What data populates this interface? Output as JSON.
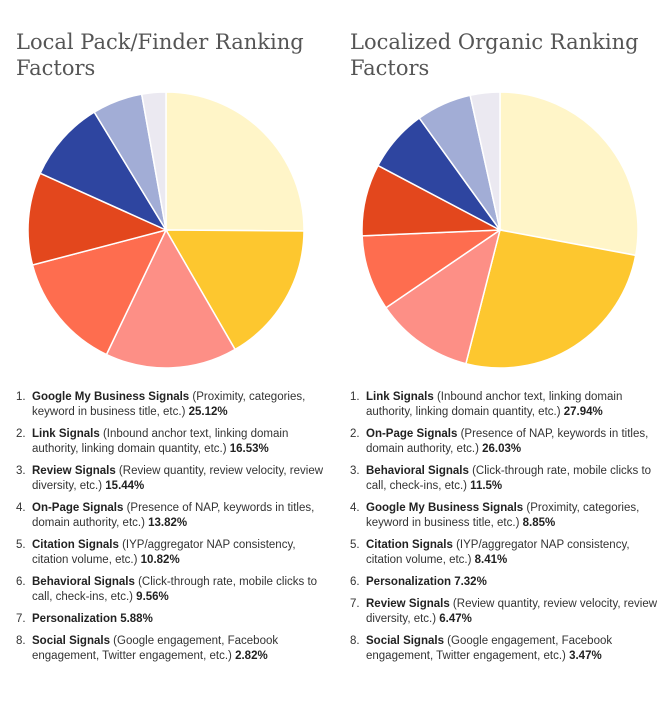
{
  "chart_data": [
    {
      "type": "pie",
      "title": "Local Pack/Finder Ranking Factors",
      "slices": [
        {
          "name": "Google My Business Signals",
          "desc": "(Proximity, categories, keyword in business title, etc.)",
          "value": 25.12,
          "value_label": "25.12%",
          "color": "#fff5c8"
        },
        {
          "name": "Link Signals",
          "desc": "(Inbound anchor text, linking domain authority, linking domain quantity, etc.)",
          "value": 16.53,
          "value_label": "16.53%",
          "color": "#fdc72f"
        },
        {
          "name": "Review Signals",
          "desc": "(Review quantity, review velocity, review diversity, etc.)",
          "value": 15.44,
          "value_label": "15.44%",
          "color": "#fd8f86"
        },
        {
          "name": "On-Page Signals",
          "desc": "(Presence of NAP, keywords in titles, domain authority, etc.)",
          "value": 13.82,
          "value_label": "13.82%",
          "color": "#fe6d4f"
        },
        {
          "name": "Citation Signals",
          "desc": "(IYP/aggregator NAP consistency, citation volume, etc.)",
          "value": 10.82,
          "value_label": "10.82%",
          "color": "#e3471d"
        },
        {
          "name": "Behavioral Signals",
          "desc": "(Click-through rate, mobile clicks to call, check-ins, etc.)",
          "value": 9.56,
          "value_label": "9.56%",
          "color": "#2e45a0"
        },
        {
          "name": "Personalization",
          "desc": "",
          "value": 5.88,
          "value_label": "5.88%",
          "color": "#a2add6"
        },
        {
          "name": "Social Signals",
          "desc": "(Google engagement, Facebook engagement, Twitter engagement, etc.)",
          "value": 2.82,
          "value_label": "2.82%",
          "color": "#ebe9f1"
        }
      ]
    },
    {
      "type": "pie",
      "title": "Localized Organic Ranking Factors",
      "slices": [
        {
          "name": "Link Signals",
          "desc": "(Inbound anchor text, linking domain authority, linking domain quantity, etc.)",
          "value": 27.94,
          "value_label": "27.94%",
          "color": "#fff5c8"
        },
        {
          "name": "On-Page Signals",
          "desc": "(Presence of NAP, keywords in titles, domain authority, etc.)",
          "value": 26.03,
          "value_label": "26.03%",
          "color": "#fdc72f"
        },
        {
          "name": "Behavioral Signals",
          "desc": "(Click-through rate, mobile clicks to call, check-ins, etc.)",
          "value": 11.5,
          "value_label": "11.5%",
          "color": "#fd8f86"
        },
        {
          "name": "Google My Business Signals",
          "desc": "(Proximity, categories, keyword in business title, etc.)",
          "value": 8.85,
          "value_label": "8.85%",
          "color": "#fe6d4f"
        },
        {
          "name": "Citation Signals",
          "desc": "(IYP/aggregator NAP consistency, citation volume, etc.)",
          "value": 8.41,
          "value_label": "8.41%",
          "color": "#e3471d"
        },
        {
          "name": "Personalization",
          "desc": "",
          "value": 7.32,
          "value_label": "7.32%",
          "color": "#2e45a0"
        },
        {
          "name": "Review Signals",
          "desc": "(Review quantity, review velocity, review diversity, etc.)",
          "value": 6.47,
          "value_label": "6.47%",
          "color": "#a2add6"
        },
        {
          "name": "Social Signals",
          "desc": "(Google engagement, Facebook engagement, Twitter engagement, etc.)",
          "value": 3.47,
          "value_label": "3.47%",
          "color": "#ebe9f1"
        }
      ]
    }
  ]
}
